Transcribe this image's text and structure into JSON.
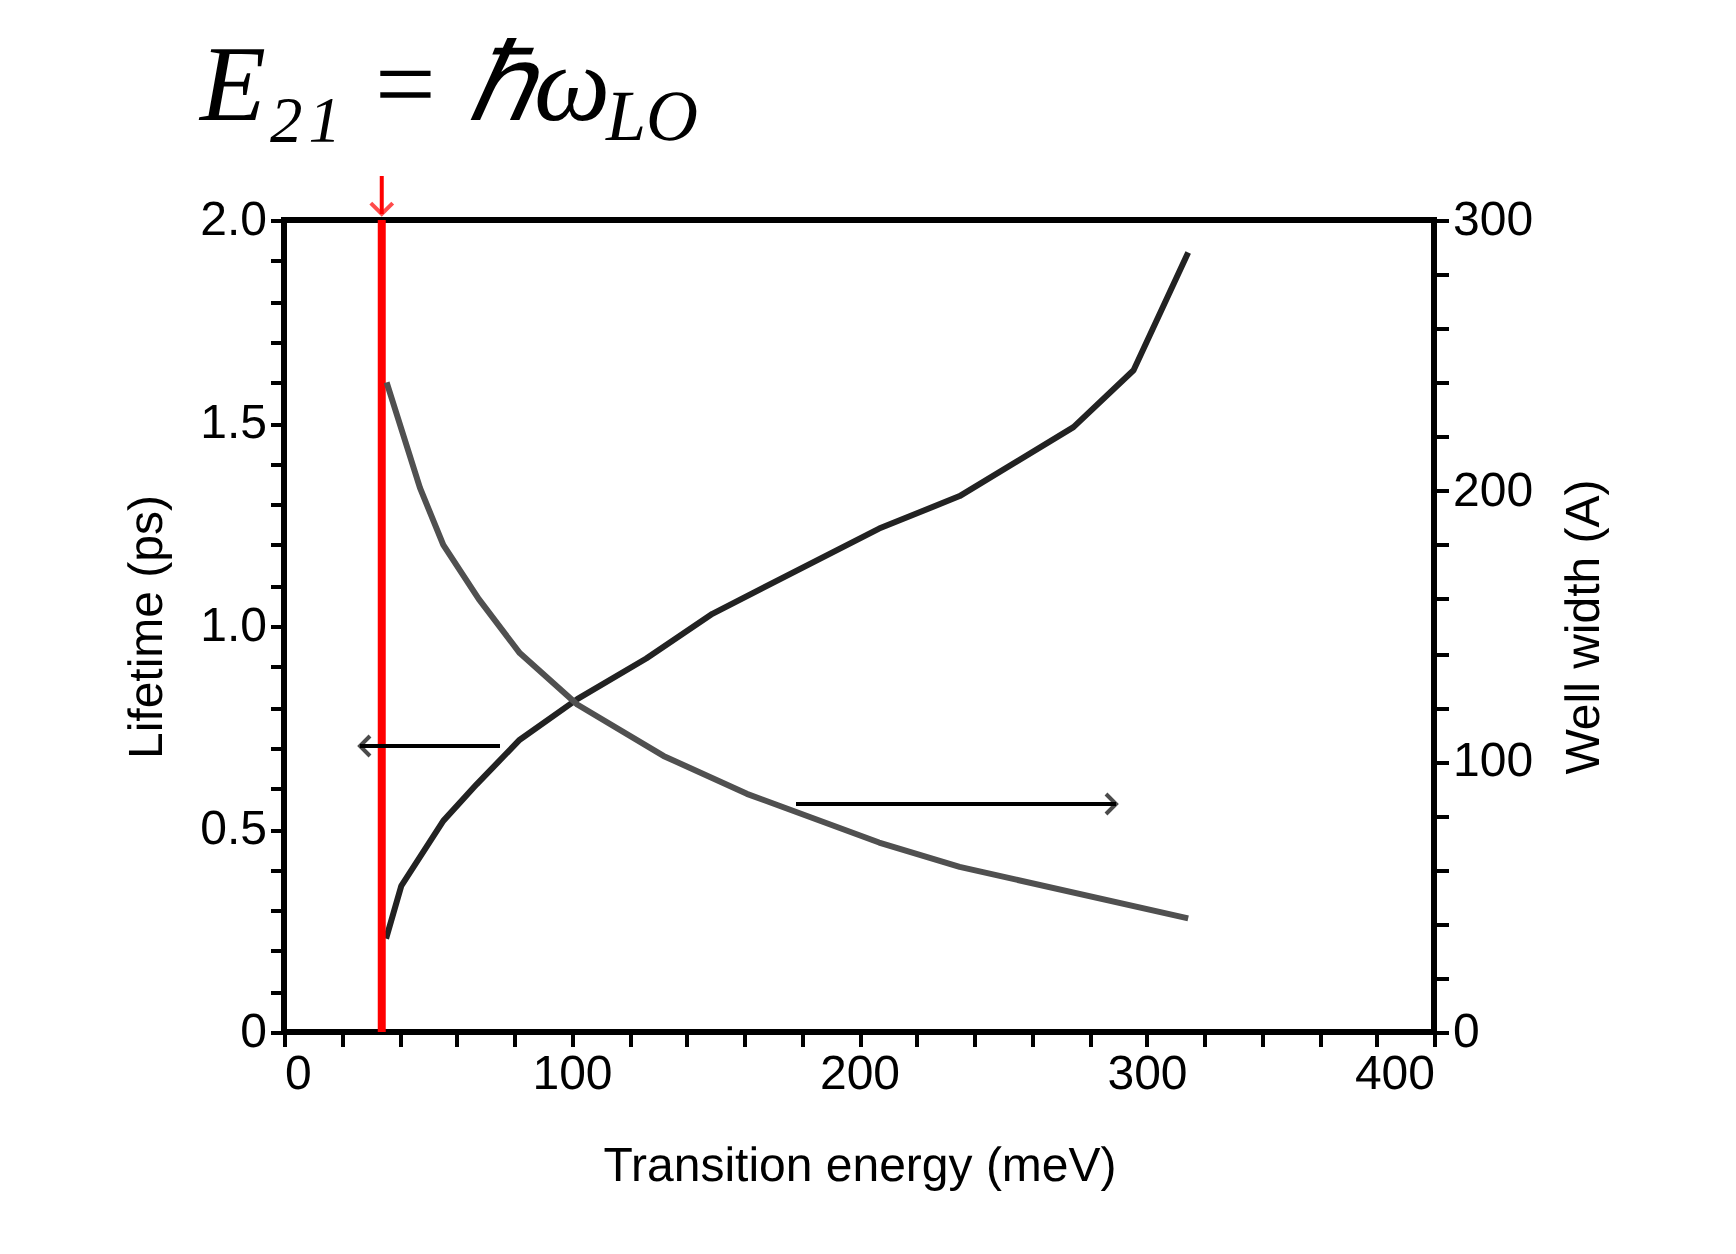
{
  "chart_data": {
    "type": "line",
    "xlabel": "Transition energy (meV)",
    "ylabel": "Lifetime (ps)",
    "y2label": "Well width (A)",
    "xlim": [
      0,
      400
    ],
    "ylim": [
      0,
      2
    ],
    "y2lim": [
      0,
      300
    ],
    "xticks": [
      0,
      {
        "value": 20,
        "label": null
      },
      {
        "value": 40,
        "label": null
      },
      {
        "value": 60,
        "label": null
      },
      {
        "value": 80,
        "label": null
      },
      100,
      {
        "value": 120,
        "label": null
      },
      {
        "value": 140,
        "label": null
      },
      {
        "value": 160,
        "label": null
      },
      {
        "value": 180,
        "label": null
      },
      200,
      {
        "value": 220,
        "label": null
      },
      {
        "value": 240,
        "label": null
      },
      {
        "value": 260,
        "label": null
      },
      {
        "value": 280,
        "label": null
      },
      300,
      {
        "value": 320,
        "label": null
      },
      {
        "value": 340,
        "label": null
      },
      {
        "value": 360,
        "label": null
      },
      {
        "value": 380,
        "label": null
      },
      400
    ],
    "yticks": [
      {
        "value": 0,
        "label": "0"
      },
      {
        "value": 0.1,
        "label": null
      },
      {
        "value": 0.2,
        "label": null
      },
      {
        "value": 0.3,
        "label": null
      },
      {
        "value": 0.4,
        "label": null
      },
      {
        "value": 0.5,
        "label": "0.5"
      },
      {
        "value": 0.6,
        "label": null
      },
      {
        "value": 0.7,
        "label": null
      },
      {
        "value": 0.8,
        "label": null
      },
      {
        "value": 0.9,
        "label": null
      },
      {
        "value": 1,
        "label": "1.0"
      },
      {
        "value": 1.1,
        "label": null
      },
      {
        "value": 1.2,
        "label": null
      },
      {
        "value": 1.3,
        "label": null
      },
      {
        "value": 1.4,
        "label": null
      },
      {
        "value": 1.5,
        "label": "1.5"
      },
      {
        "value": 1.6,
        "label": null
      },
      {
        "value": 1.7,
        "label": null
      },
      {
        "value": 1.8,
        "label": null
      },
      {
        "value": 1.9,
        "label": null
      },
      {
        "value": 2,
        "label": "2.0"
      }
    ],
    "y2ticks": [
      0,
      {
        "value": 20,
        "label": null
      },
      {
        "value": 40,
        "label": null
      },
      {
        "value": 60,
        "label": null
      },
      {
        "value": 80,
        "label": null
      },
      100,
      {
        "value": 120,
        "label": null
      },
      {
        "value": 140,
        "label": null
      },
      {
        "value": 160,
        "label": null
      },
      {
        "value": 180,
        "label": null
      },
      200,
      {
        "value": 220,
        "label": null
      },
      {
        "value": 240,
        "label": null
      },
      {
        "value": 260,
        "label": null
      },
      {
        "value": 280,
        "label": null
      },
      300
    ],
    "grid": false,
    "series": [
      {
        "color": "#222222",
        "x": [
          35.5,
          40.8,
          55.4,
          67,
          82,
          102,
          126,
          149,
          207,
          235,
          274.6,
          295.5,
          314.5
        ],
        "values": [
          0.23,
          0.36,
          0.52,
          0.61,
          0.72,
          0.82,
          0.92,
          1.03,
          1.24,
          1.32,
          1.49,
          1.63,
          1.92
        ]
      },
      {
        "color": "#505050",
        "axis": "y2",
        "x": [
          35.7,
          47.3,
          55.4,
          67.7,
          82,
          102,
          132,
          161,
          207,
          235,
          314.5
        ],
        "values": [
          240,
          201,
          180,
          160,
          140,
          121,
          102,
          88,
          70,
          61,
          42
        ]
      }
    ],
    "ref_lines": [
      {
        "axis": "x",
        "value": 34,
        "label": "E₂₁ = ℏω$_{LO}$",
        "color": "#ff0000"
      }
    ]
  }
}
